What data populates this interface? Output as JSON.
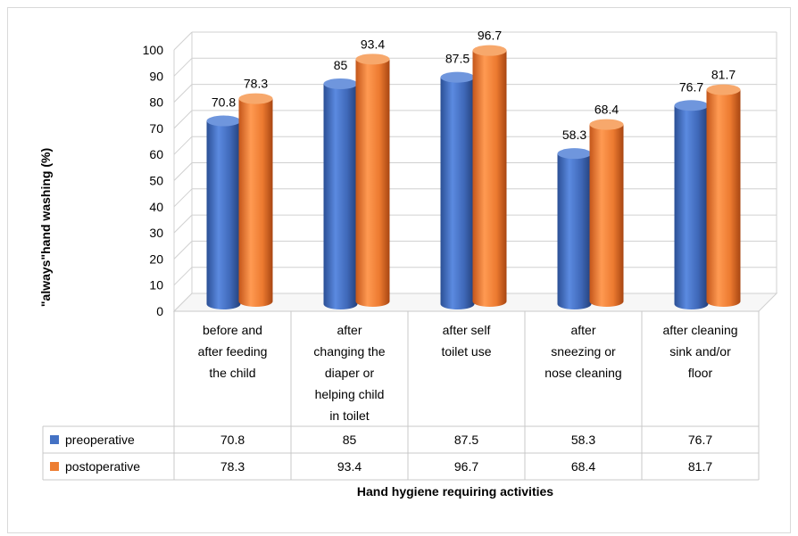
{
  "chart_data": {
    "type": "bar",
    "title": "",
    "ylabel": "\"always\"hand washing (%)",
    "xlabel": "Hand hygiene requiring activities",
    "ylim": [
      0,
      100
    ],
    "yticks": [
      0,
      10,
      20,
      30,
      40,
      50,
      60,
      70,
      80,
      90,
      100
    ],
    "categories": [
      [
        "before and",
        "after feeding",
        "the child"
      ],
      [
        "after",
        "changing the",
        "diaper or",
        "helping child",
        "in toilet"
      ],
      [
        "after self",
        "toilet use"
      ],
      [
        "after",
        "sneezing or",
        "nose cleaning"
      ],
      [
        "after cleaning",
        "sink and/or",
        "floor"
      ]
    ],
    "series": [
      {
        "name": "preoperative",
        "values": [
          70.8,
          85,
          87.5,
          58.3,
          76.7
        ],
        "color": "#4472c4",
        "labels": [
          "70.8",
          "85",
          "87.5",
          "58.3",
          "76.7"
        ]
      },
      {
        "name": "postoperative",
        "values": [
          78.3,
          93.4,
          96.7,
          68.4,
          81.7
        ],
        "color": "#ed7d31",
        "labels": [
          "78.3",
          "93.4",
          "96.7",
          "68.4",
          "81.7"
        ]
      }
    ],
    "grid": true,
    "style": "3d-cylinder",
    "legend": "data-table"
  }
}
